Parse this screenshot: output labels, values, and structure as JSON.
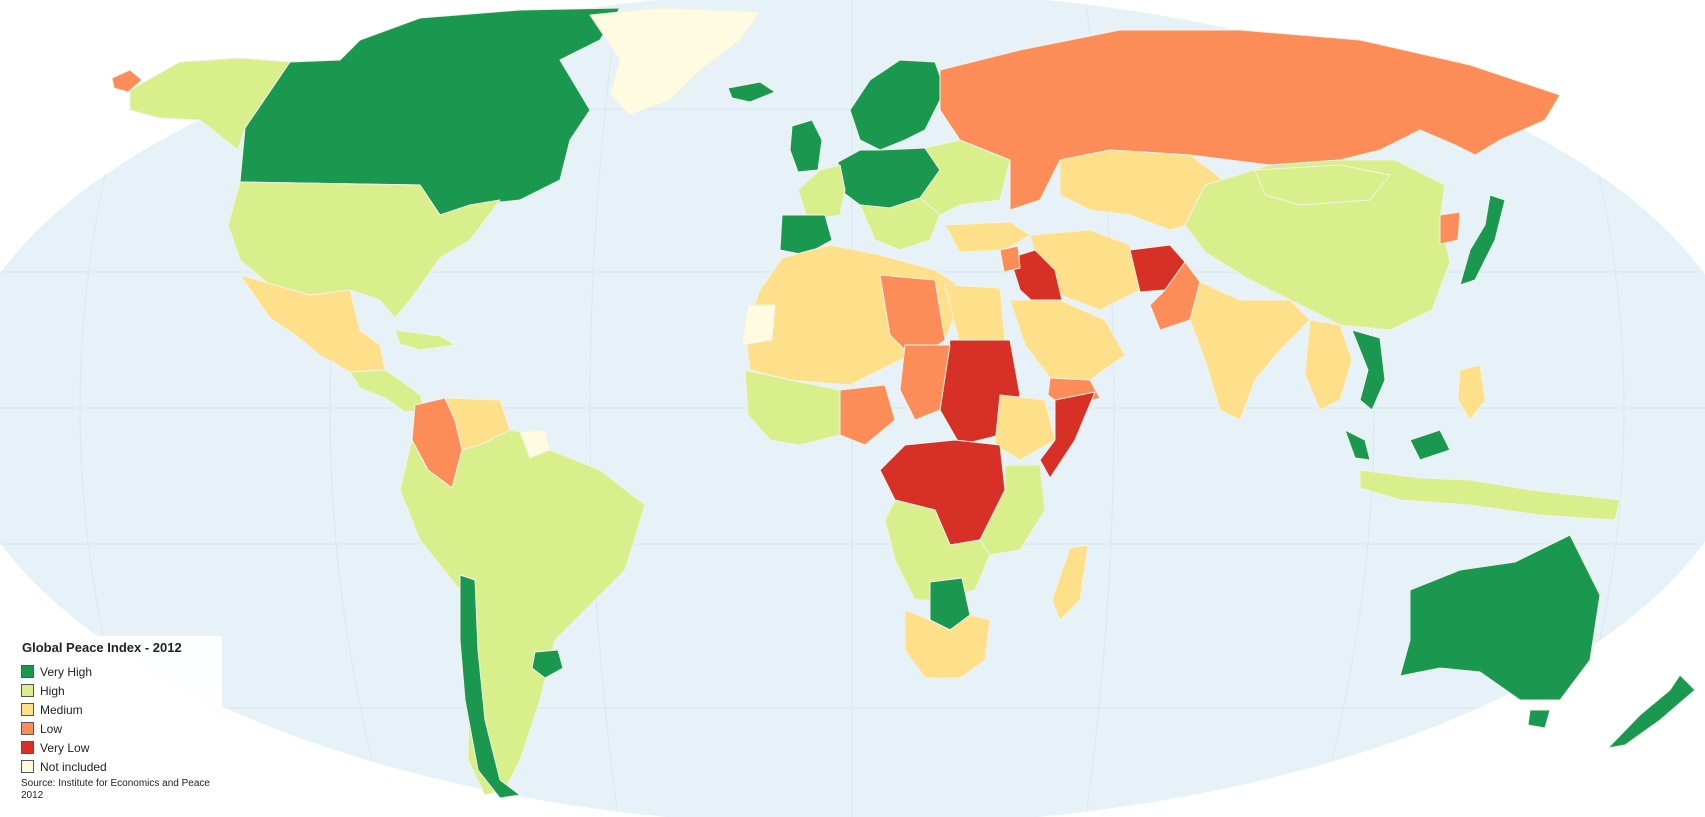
{
  "legend": {
    "title": "Global Peace Index - 2012",
    "items": [
      {
        "label": "Very High",
        "color": "#1a9850"
      },
      {
        "label": "High",
        "color": "#d9ef8b"
      },
      {
        "label": "Medium",
        "color": "#fee08b"
      },
      {
        "label": "Low",
        "color": "#fc8d59"
      },
      {
        "label": "Very Low",
        "color": "#d73027"
      },
      {
        "label": "Not included",
        "color": "#fffbe0"
      }
    ],
    "source": "Source: Institute for Economics and Peace 2012"
  },
  "colors": {
    "ocean": "#e6f2f8",
    "background": "#ffffff",
    "border": "#c8d8c0"
  }
}
